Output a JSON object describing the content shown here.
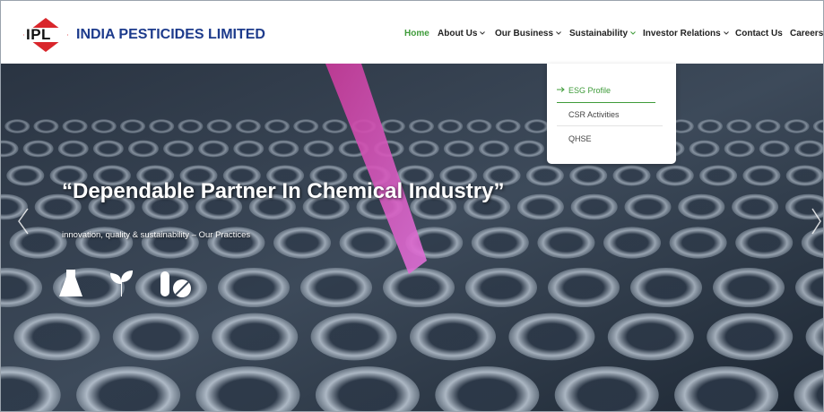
{
  "header": {
    "logo": "IPL",
    "brand": "INDIA PESTICIDES LIMITED",
    "nav": [
      "Home",
      "About Us",
      "Our Business",
      "Sustainability",
      "Investor Relations",
      "Contact Us",
      "Careers"
    ]
  },
  "dropdown": [
    "ESG Profile",
    "CSR Activities",
    "QHSE"
  ],
  "hero": {
    "title": "“Dependable Partner In Chemical Industry”",
    "subtitle": "innovation, quality & sustainability – Our Practices"
  }
}
